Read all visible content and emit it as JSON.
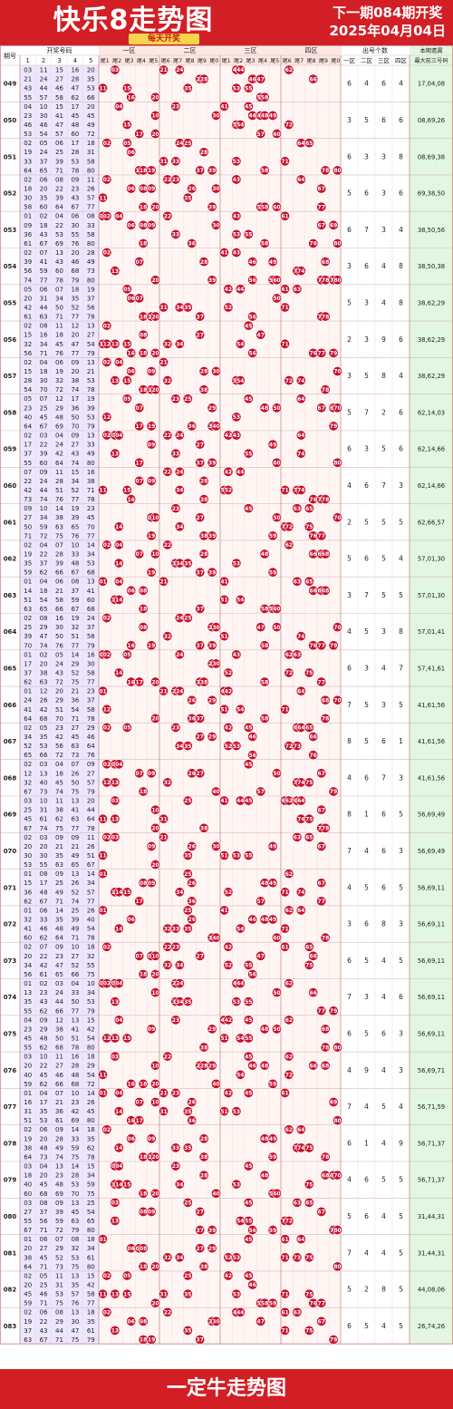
{
  "header": {
    "title": "快乐8走势图",
    "next_draw": "下一期084期开奖",
    "date": "2025年04月04日",
    "badge": "每天开奖"
  },
  "footer": {
    "brand": "一定牛走势图"
  },
  "colors": {
    "brand_red": "#d21f26",
    "ball_red": "#c8102e",
    "issue_bg": "#e9e3ff",
    "summary_bg": "#e4f5e4"
  },
  "chart_data": {
    "type": "table",
    "columns": {
      "issue": "期号",
      "draw_numbers": "开奖号码",
      "draw_cols": [
        "1",
        "2",
        "3",
        "4",
        "5"
      ],
      "zones": [
        "一区",
        "二区",
        "三区",
        "四区"
      ],
      "tails": [
        "尾1",
        "尾2",
        "尾3",
        "尾4",
        "尾5",
        "尾6",
        "尾7",
        "尾8",
        "尾9",
        "尾0"
      ],
      "counts_title": "出号个数",
      "count_cols": [
        "一区",
        "二区",
        "三区",
        "四区"
      ],
      "hot": "本期遗漏最大前三号码"
    },
    "rows": [
      {
        "issue": "049",
        "numbers": [
          3,
          11,
          15,
          16,
          20,
          21,
          24,
          27,
          28,
          35,
          43,
          44,
          46,
          47,
          53,
          55,
          57,
          58,
          62,
          66
        ],
        "counts": [
          6,
          4,
          6,
          4
        ],
        "hot": "17,04,08"
      },
      {
        "issue": "050",
        "numbers": [
          4,
          10,
          15,
          17,
          20,
          23,
          30,
          41,
          45,
          46,
          45,
          46,
          47,
          48,
          49,
          53,
          54,
          57,
          60,
          72
        ],
        "counts": [
          3,
          5,
          6,
          6
        ],
        "hot": "08,69,26"
      },
      {
        "issue": "051",
        "numbers": [
          2,
          5,
          6,
          17,
          18,
          19,
          24,
          25,
          28,
          31,
          33,
          37,
          39,
          53,
          58,
          64,
          65,
          71,
          78,
          80
        ],
        "counts": [
          6,
          3,
          3,
          8
        ],
        "hot": "08,69,38"
      },
      {
        "issue": "052",
        "numbers": [
          2,
          6,
          8,
          9,
          11,
          18,
          20,
          22,
          23,
          26,
          30,
          35,
          39,
          43,
          57,
          58,
          60,
          64,
          67,
          77
        ],
        "counts": [
          5,
          6,
          3,
          6
        ],
        "hot": "69,38,50"
      },
      {
        "issue": "053",
        "numbers": [
          1,
          2,
          4,
          6,
          8,
          9,
          18,
          22,
          30,
          33,
          36,
          43,
          53,
          55,
          58,
          61,
          67,
          69,
          76,
          80
        ],
        "counts": [
          6,
          7,
          3,
          4
        ],
        "hot": "38,50,56"
      },
      {
        "issue": "054",
        "numbers": [
          2,
          7,
          13,
          20,
          28,
          39,
          41,
          43,
          46,
          49,
          56,
          59,
          60,
          68,
          73,
          74,
          77,
          78,
          80,
          79
        ],
        "counts": [
          3,
          6,
          4,
          8
        ],
        "hot": "38,50,38"
      },
      {
        "issue": "055",
        "numbers": [
          5,
          6,
          7,
          18,
          19,
          20,
          31,
          34,
          35,
          37,
          42,
          44,
          50,
          52,
          56,
          61,
          63,
          71,
          77,
          78
        ],
        "counts": [
          5,
          3,
          4,
          8
        ],
        "hot": "38,62,29"
      },
      {
        "issue": "056",
        "numbers": [
          2,
          8,
          11,
          12,
          13,
          15,
          16,
          18,
          20,
          27,
          32,
          34,
          45,
          47,
          54,
          56,
          71,
          76,
          77,
          79
        ],
        "counts": [
          2,
          3,
          9,
          6
        ],
        "hot": "38,62,29"
      },
      {
        "issue": "057",
        "numbers": [
          2,
          4,
          6,
          9,
          13,
          15,
          18,
          19,
          20,
          21,
          28,
          30,
          32,
          38,
          53,
          54,
          70,
          72,
          74,
          78
        ],
        "counts": [
          3,
          5,
          8,
          4
        ],
        "hot": "38,62,29"
      },
      {
        "issue": "058",
        "numbers": [
          5,
          7,
          12,
          17,
          19,
          23,
          25,
          29,
          36,
          39,
          40,
          45,
          48,
          50,
          53,
          67,
          69,
          70,
          79,
          64
        ],
        "counts": [
          5,
          7,
          2,
          6
        ],
        "hot": "62,14,03"
      },
      {
        "issue": "059",
        "numbers": [
          2,
          3,
          4,
          9,
          13,
          17,
          22,
          24,
          27,
          33,
          37,
          39,
          42,
          43,
          49,
          55,
          64,
          60,
          74,
          80
        ],
        "counts": [
          6,
          3,
          5,
          6
        ],
        "hot": "62,14,66"
      },
      {
        "issue": "060",
        "numbers": [
          7,
          9,
          11,
          15,
          16,
          22,
          24,
          28,
          34,
          38,
          42,
          44,
          51,
          52,
          71,
          73,
          74,
          76,
          78,
          77
        ],
        "counts": [
          4,
          6,
          7,
          3
        ],
        "hot": "62,14,66"
      },
      {
        "issue": "061",
        "numbers": [
          9,
          10,
          14,
          19,
          23,
          27,
          34,
          38,
          39,
          50,
          59,
          63,
          65,
          70,
          71,
          72,
          75,
          76,
          77,
          45
        ],
        "counts": [
          2,
          5,
          5,
          5
        ],
        "hot": "62,66,57"
      },
      {
        "issue": "062",
        "numbers": [
          2,
          4,
          7,
          10,
          14,
          19,
          22,
          28,
          33,
          34,
          35,
          37,
          39,
          48,
          53,
          59,
          62,
          66,
          67,
          68
        ],
        "counts": [
          5,
          6,
          5,
          4
        ],
        "hot": "57,01,30"
      },
      {
        "issue": "063",
        "numbers": [
          1,
          4,
          6,
          8,
          13,
          14,
          18,
          21,
          37,
          41,
          51,
          54,
          58,
          59,
          60,
          63,
          65,
          66,
          67,
          68
        ],
        "counts": [
          3,
          7,
          5,
          5
        ],
        "hot": "57,01,30"
      },
      {
        "issue": "064",
        "numbers": [
          2,
          8,
          16,
          19,
          24,
          25,
          29,
          30,
          32,
          37,
          39,
          47,
          50,
          51,
          58,
          70,
          74,
          76,
          77,
          79
        ],
        "counts": [
          4,
          5,
          3,
          8
        ],
        "hot": "57,01,41"
      },
      {
        "issue": "065",
        "numbers": [
          1,
          2,
          5,
          14,
          16,
          17,
          20,
          24,
          29,
          30,
          37,
          38,
          43,
          52,
          58,
          62,
          63,
          72,
          77,
          75
        ],
        "counts": [
          6,
          3,
          4,
          7
        ],
        "hot": "57,41,61"
      },
      {
        "issue": "066",
        "numbers": [
          1,
          12,
          20,
          21,
          23,
          24,
          26,
          29,
          36,
          37,
          41,
          42,
          51,
          54,
          58,
          64,
          68,
          70,
          71,
          78
        ],
        "counts": [
          7,
          5,
          3,
          5
        ],
        "hot": "41,61,56"
      },
      {
        "issue": "067",
        "numbers": [
          2,
          5,
          23,
          27,
          29,
          34,
          35,
          45,
          46,
          52,
          53,
          56,
          63,
          64,
          65,
          66,
          72,
          76,
          42,
          73
        ],
        "counts": [
          8,
          5,
          6,
          1
        ],
        "hot": "41,61,56"
      },
      {
        "issue": "068",
        "numbers": [
          2,
          3,
          4,
          7,
          9,
          12,
          13,
          18,
          26,
          27,
          32,
          40,
          45,
          50,
          57,
          67,
          73,
          74,
          75,
          79
        ],
        "counts": [
          4,
          6,
          7,
          3
        ],
        "hot": "41,61,56"
      },
      {
        "issue": "069",
        "numbers": [
          3,
          10,
          11,
          13,
          20,
          25,
          31,
          38,
          41,
          44,
          45,
          61,
          62,
          63,
          64,
          67,
          74,
          75,
          77,
          78
        ],
        "counts": [
          8,
          1,
          6,
          5
        ],
        "hot": "56,69,49"
      },
      {
        "issue": "070",
        "numbers": [
          2,
          3,
          9,
          11,
          20,
          21,
          26,
          30,
          35,
          49,
          51,
          53,
          55,
          63,
          65,
          67,
          9,
          20,
          21,
          30
        ],
        "counts": [
          7,
          4,
          6,
          3
        ],
        "hot": "56,69,49"
      },
      {
        "issue": "071",
        "numbers": [
          1,
          8,
          9,
          13,
          14,
          15,
          17,
          25,
          26,
          34,
          36,
          48,
          49,
          52,
          57,
          62,
          67,
          71,
          74,
          77
        ],
        "counts": [
          4,
          5,
          6,
          5
        ],
        "hot": "56,69,11"
      },
      {
        "issue": "072",
        "numbers": [
          1,
          6,
          14,
          25,
          26,
          32,
          33,
          35,
          39,
          40,
          41,
          46,
          48,
          49,
          54,
          60,
          62,
          64,
          71,
          78
        ],
        "counts": [
          3,
          6,
          8,
          3
        ],
        "hot": "56,69,11"
      },
      {
        "issue": "073",
        "numbers": [
          2,
          7,
          9,
          10,
          18,
          20,
          22,
          23,
          27,
          32,
          34,
          42,
          47,
          52,
          55,
          56,
          61,
          65,
          66,
          75
        ],
        "counts": [
          6,
          5,
          4,
          5
        ],
        "hot": "56,69,11"
      },
      {
        "issue": "074",
        "numbers": [
          1,
          2,
          3,
          4,
          10,
          13,
          23,
          24,
          33,
          34,
          35,
          43,
          44,
          50,
          53,
          55,
          62,
          66,
          77,
          79
        ],
        "counts": [
          7,
          3,
          4,
          6
        ],
        "hot": "56,69,11"
      },
      {
        "issue": "075",
        "numbers": [
          4,
          9,
          12,
          13,
          15,
          23,
          29,
          38,
          41,
          42,
          45,
          48,
          50,
          51,
          54,
          55,
          62,
          68,
          78,
          80
        ],
        "counts": [
          6,
          5,
          6,
          3
        ],
        "hot": "56,69,11"
      },
      {
        "issue": "076",
        "numbers": [
          3,
          10,
          11,
          16,
          18,
          20,
          22,
          27,
          28,
          29,
          40,
          45,
          46,
          48,
          54,
          59,
          62,
          66,
          68,
          72
        ],
        "counts": [
          4,
          9,
          4,
          3
        ],
        "hot": "56,69,71"
      },
      {
        "issue": "077",
        "numbers": [
          1,
          4,
          7,
          10,
          14,
          16,
          17,
          21,
          23,
          26,
          31,
          35,
          36,
          42,
          45,
          51,
          53,
          61,
          69,
          80
        ],
        "counts": [
          7,
          4,
          5,
          4
        ],
        "hot": "56,71,59"
      },
      {
        "issue": "078",
        "numbers": [
          2,
          6,
          9,
          14,
          18,
          19,
          20,
          28,
          33,
          35,
          38,
          48,
          49,
          59,
          62,
          64,
          73,
          74,
          75,
          78
        ],
        "counts": [
          6,
          1,
          4,
          9
        ],
        "hot": "56,71,37"
      },
      {
        "issue": "079",
        "numbers": [
          3,
          4,
          13,
          14,
          15,
          18,
          20,
          23,
          28,
          34,
          40,
          45,
          48,
          53,
          59,
          60,
          68,
          69,
          70,
          75
        ],
        "counts": [
          4,
          6,
          5,
          5
        ],
        "hot": "56,71,37"
      },
      {
        "issue": "080",
        "numbers": [
          3,
          8,
          9,
          13,
          25,
          27,
          37,
          39,
          45,
          54,
          55,
          56,
          59,
          63,
          65,
          67,
          71,
          72,
          79,
          80
        ],
        "counts": [
          5,
          6,
          4,
          5
        ],
        "hot": "31,44,31"
      },
      {
        "issue": "081",
        "numbers": [
          1,
          6,
          7,
          8,
          18,
          20,
          27,
          29,
          32,
          34,
          38,
          45,
          52,
          53,
          61,
          64,
          71,
          73,
          75,
          80
        ],
        "counts": [
          7,
          4,
          4,
          5
        ],
        "hot": "31,44,31"
      },
      {
        "issue": "082",
        "numbers": [
          2,
          5,
          11,
          13,
          15,
          20,
          25,
          31,
          35,
          42,
          45,
          46,
          53,
          57,
          58,
          59,
          71,
          75,
          76,
          77
        ],
        "counts": [
          5,
          2,
          8,
          5
        ],
        "hot": "44,08,06"
      },
      {
        "issue": "083",
        "numbers": [
          2,
          6,
          8,
          13,
          18,
          19,
          22,
          29,
          30,
          35,
          37,
          43,
          44,
          47,
          61,
          63,
          67,
          71,
          75,
          79
        ],
        "counts": [
          6,
          5,
          4,
          5
        ],
        "hot": "26,74,26"
      }
    ]
  }
}
